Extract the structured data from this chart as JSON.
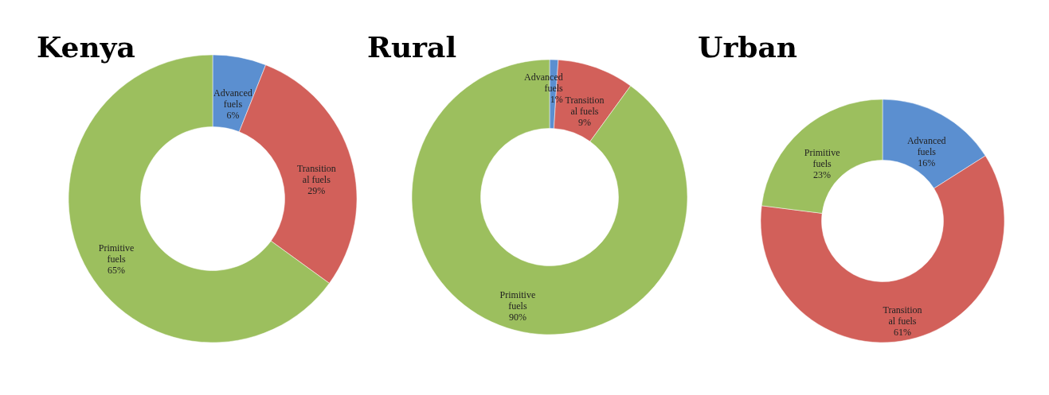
{
  "chart_data": [
    {
      "type": "donut",
      "title": "Kenya",
      "categories": [
        "Advanced fuels",
        "Transition al fuels",
        "Primitive fuels"
      ],
      "values": [
        6,
        29,
        65
      ],
      "colors": [
        "#5b8fd0",
        "#d2605a",
        "#9cbf5e"
      ],
      "value_labels": [
        "6%",
        "29%",
        "65%"
      ],
      "legend": false
    },
    {
      "type": "donut",
      "title": "Rural",
      "categories": [
        "Advanced fuels",
        "Transition al fuels",
        "Primitive fuels"
      ],
      "values": [
        1,
        9,
        90
      ],
      "colors": [
        "#5b8fd0",
        "#d2605a",
        "#9cbf5e"
      ],
      "value_labels": [
        "1%",
        "9%",
        "90%"
      ],
      "legend": false
    },
    {
      "type": "donut",
      "title": "Urban",
      "categories": [
        "Advanced fuels",
        "Transition al fuels",
        "Primitive fuels"
      ],
      "values": [
        16,
        61,
        23
      ],
      "colors": [
        "#5b8fd0",
        "#d2605a",
        "#9cbf5e"
      ],
      "value_labels": [
        "16%",
        "61%",
        "23%"
      ],
      "legend": false
    }
  ]
}
